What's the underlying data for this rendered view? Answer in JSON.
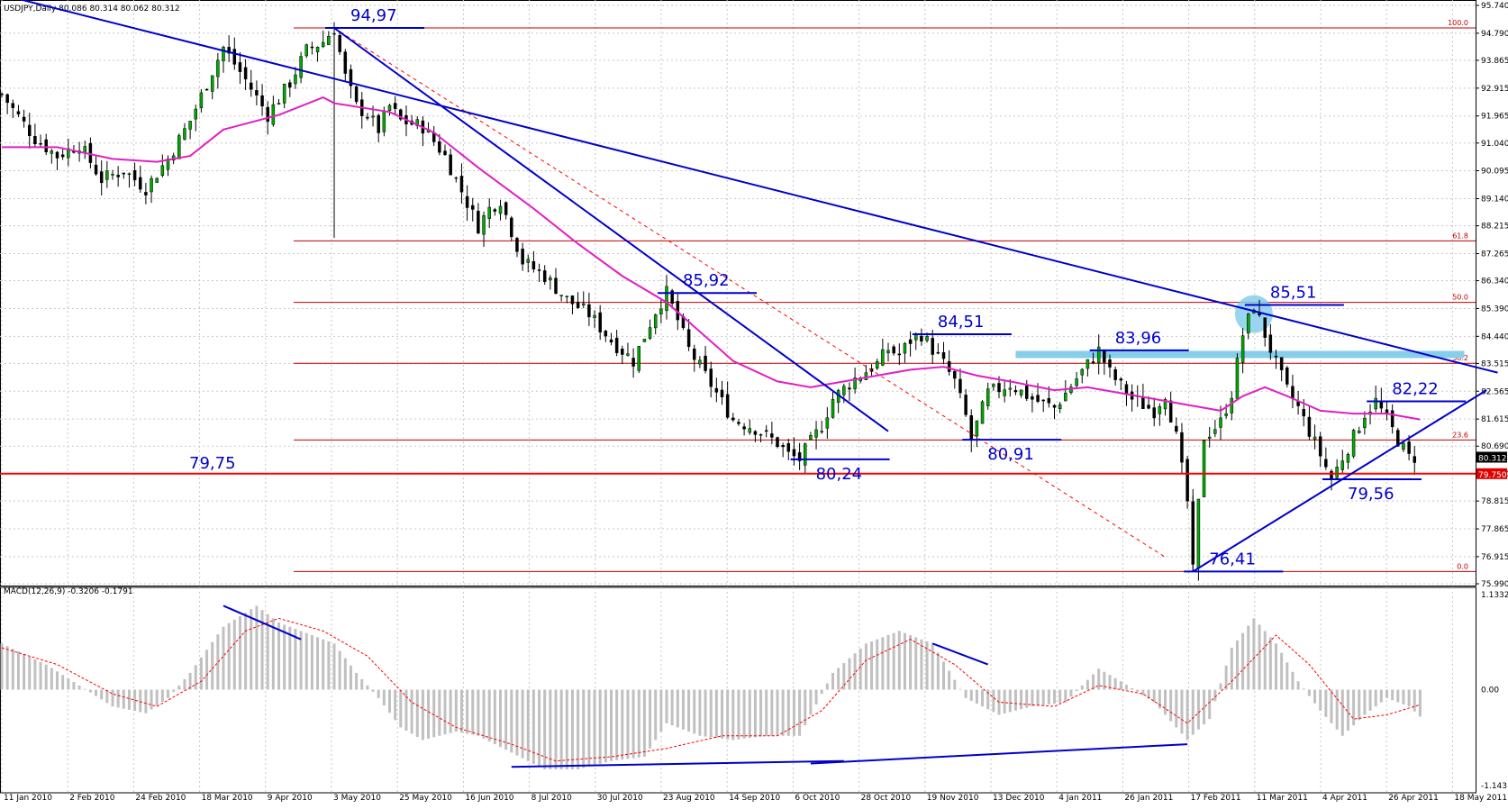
{
  "chart_data": [
    {
      "type": "candlestick",
      "symbol_header": "USDJPY,Daily  80.086 80.314 80.062 80.312",
      "y_axis": {
        "range": [
          75.99,
          95.74
        ],
        "tick_labels": [
          "95.740",
          "94.790",
          "93.865",
          "92.915",
          "91.965",
          "91.040",
          "90.095",
          "89.140",
          "88.215",
          "87.265",
          "86.340",
          "85.390",
          "84.440",
          "83.515",
          "82.565",
          "81.615",
          "80.690",
          "79.740",
          "78.815",
          "77.865",
          "76.915",
          "75.990"
        ]
      },
      "x_axis": {
        "tick_labels": [
          "11 Jan 2010",
          "2 Feb 2010",
          "24 Feb 2010",
          "18 Mar 2010",
          "9 Apr 2010",
          "3 May 2010",
          "25 May 2010",
          "16 Jun 2010",
          "8 Jul 2010",
          "30 Jul 2010",
          "23 Aug 2010",
          "14 Sep 2010",
          "6 Oct 2010",
          "28 Oct 2010",
          "19 Nov 2010",
          "13 Dec 2010",
          "4 Jan 2011",
          "26 Jan 2011",
          "17 Feb 2011",
          "11 Mar 2011",
          "4 Apr 2011",
          "26 Apr 2011",
          "18 May 2011"
        ]
      },
      "price_path": [
        [
          0,
          92.7
        ],
        [
          6,
          91.2
        ],
        [
          10,
          90.6
        ],
        [
          14,
          91.0
        ],
        [
          18,
          89.8
        ],
        [
          22,
          90.1
        ],
        [
          26,
          89.5
        ],
        [
          30,
          90.5
        ],
        [
          34,
          91.8
        ],
        [
          38,
          93.5
        ],
        [
          40,
          94.3
        ],
        [
          44,
          93.2
        ],
        [
          48,
          92.0
        ],
        [
          52,
          93.1
        ],
        [
          55,
          94.2
        ],
        [
          58,
          94.5
        ],
        [
          60,
          94.97
        ],
        [
          62,
          93.3
        ],
        [
          64,
          92.3
        ],
        [
          66,
          92.0
        ],
        [
          68,
          91.5
        ],
        [
          70,
          92.3
        ],
        [
          72,
          91.8
        ],
        [
          76,
          91.6
        ],
        [
          80,
          90.6
        ],
        [
          84,
          89.0
        ],
        [
          86,
          88.2
        ],
        [
          88,
          88.8
        ],
        [
          90,
          89.1
        ],
        [
          94,
          87.0
        ],
        [
          98,
          86.5
        ],
        [
          102,
          85.7
        ],
        [
          106,
          85.2
        ],
        [
          110,
          84.3
        ],
        [
          114,
          83.6
        ],
        [
          118,
          85.3
        ],
        [
          120,
          85.92
        ],
        [
          122,
          85.0
        ],
        [
          124,
          84.0
        ],
        [
          128,
          82.8
        ],
        [
          132,
          81.6
        ],
        [
          136,
          81.3
        ],
        [
          140,
          80.8
        ],
        [
          142,
          80.4
        ],
        [
          144,
          80.24
        ],
        [
          148,
          81.4
        ],
        [
          150,
          82.3
        ],
        [
          154,
          83.0
        ],
        [
          158,
          83.5
        ],
        [
          160,
          84.0
        ],
        [
          162,
          83.8
        ],
        [
          164,
          84.3
        ],
        [
          166,
          84.51
        ],
        [
          168,
          84.0
        ],
        [
          170,
          83.5
        ],
        [
          172,
          82.9
        ],
        [
          174,
          81.7
        ],
        [
          175,
          80.91
        ],
        [
          178,
          82.5
        ],
        [
          182,
          82.8
        ],
        [
          186,
          82.3
        ],
        [
          190,
          82.0
        ],
        [
          194,
          83.0
        ],
        [
          198,
          83.96
        ],
        [
          200,
          83.2
        ],
        [
          204,
          82.3
        ],
        [
          208,
          81.9
        ],
        [
          210,
          82.5
        ],
        [
          212,
          81.0
        ],
        [
          214,
          78.8
        ],
        [
          215,
          76.41
        ],
        [
          217,
          81.0
        ],
        [
          220,
          81.5
        ],
        [
          222,
          82.5
        ],
        [
          224,
          84.5
        ],
        [
          226,
          85.51
        ],
        [
          228,
          84.5
        ],
        [
          230,
          83.5
        ],
        [
          232,
          82.6
        ],
        [
          234,
          82.0
        ],
        [
          236,
          81.2
        ],
        [
          238,
          80.4
        ],
        [
          240,
          79.56
        ],
        [
          242,
          80.3
        ],
        [
          244,
          81.0
        ],
        [
          246,
          81.8
        ],
        [
          248,
          82.22
        ],
        [
          250,
          81.6
        ],
        [
          252,
          80.9
        ],
        [
          254,
          80.3
        ],
        [
          255,
          80.312
        ]
      ],
      "moving_average_path": [
        [
          0,
          90.9
        ],
        [
          10,
          90.9
        ],
        [
          20,
          90.5
        ],
        [
          28,
          90.4
        ],
        [
          34,
          90.6
        ],
        [
          40,
          91.5
        ],
        [
          50,
          92.0
        ],
        [
          58,
          92.6
        ],
        [
          60,
          92.4
        ],
        [
          70,
          92.1
        ],
        [
          78,
          91.4
        ],
        [
          86,
          90.2
        ],
        [
          96,
          88.8
        ],
        [
          104,
          87.6
        ],
        [
          112,
          86.5
        ],
        [
          120,
          85.6
        ],
        [
          126,
          84.6
        ],
        [
          132,
          83.6
        ],
        [
          140,
          82.9
        ],
        [
          146,
          82.7
        ],
        [
          152,
          82.9
        ],
        [
          158,
          83.1
        ],
        [
          164,
          83.3
        ],
        [
          170,
          83.4
        ],
        [
          176,
          83.1
        ],
        [
          182,
          82.9
        ],
        [
          190,
          82.6
        ],
        [
          196,
          82.7
        ],
        [
          202,
          82.5
        ],
        [
          208,
          82.3
        ],
        [
          214,
          82.1
        ],
        [
          220,
          81.9
        ],
        [
          224,
          82.4
        ],
        [
          228,
          82.7
        ],
        [
          232,
          82.4
        ],
        [
          238,
          81.9
        ],
        [
          244,
          81.8
        ],
        [
          250,
          81.8
        ],
        [
          256,
          81.6
        ]
      ],
      "fibonacci_levels": [
        {
          "label": "100.0",
          "value": 94.97
        },
        {
          "label": "61.8",
          "value": 87.7
        },
        {
          "label": "50.0",
          "value": 85.6
        },
        {
          "label": "38.2",
          "value": 83.52
        },
        {
          "label": "23.6",
          "value": 80.9
        },
        {
          "label": "0.0",
          "value": 76.41
        }
      ],
      "support_line": {
        "label": "79,75",
        "value": 79.75,
        "axis_label": "79.750"
      },
      "last_price_label": "80.312",
      "annotations": [
        {
          "text": "94,97",
          "bar": 60,
          "value": 94.97
        },
        {
          "text": "85,92",
          "bar": 120,
          "value": 85.92
        },
        {
          "text": "84,51",
          "bar": 166,
          "value": 84.51
        },
        {
          "text": "80,24",
          "bar": 144,
          "value": 80.24
        },
        {
          "text": "80,91",
          "bar": 175,
          "value": 80.91
        },
        {
          "text": "83,96",
          "bar": 198,
          "value": 83.96
        },
        {
          "text": "85,51",
          "bar": 226,
          "value": 85.51
        },
        {
          "text": "76,41",
          "bar": 215,
          "value": 76.41
        },
        {
          "text": "82,22",
          "bar": 248,
          "value": 82.22
        },
        {
          "text": "79,56",
          "bar": 240,
          "value": 79.56
        }
      ],
      "trendlines": [
        {
          "from": [
            -2,
            96.2
          ],
          "to": [
            270,
            83.2
          ],
          "color": "#0000cc"
        },
        {
          "from": [
            60,
            94.97
          ],
          "to": [
            160,
            81.2
          ],
          "color": "#0000cc"
        },
        {
          "from": [
            215,
            76.41
          ],
          "to": [
            268,
            82.6
          ],
          "color": "#0000cc"
        }
      ],
      "dashed_line": {
        "from": [
          60,
          94.97
        ],
        "to": [
          210,
          76.9
        ],
        "color": "#ff0000"
      },
      "resistance_band": {
        "value": 83.82,
        "from_bar": 183,
        "to_bar": 264,
        "color": "#87ceeb"
      },
      "highlight_circle": {
        "bar": 226,
        "value": 85.2,
        "color": "#87ceeb"
      },
      "colors": {
        "bull": "#00aa00",
        "bear": "#000000",
        "ma": "#e020c0",
        "fib": "#c00000",
        "annotation": "#0000cc",
        "support": "#ff0000"
      }
    },
    {
      "type": "bar",
      "indicator_header": "MACD(12,26,9) -0.3206 -0.1791",
      "y_axis": {
        "tick_labels": [
          "1.1332",
          "0.00",
          "-1.143"
        ],
        "range": [
          -1.143,
          1.1332
        ]
      },
      "histogram_path": [
        [
          0,
          0.55
        ],
        [
          8,
          0.3
        ],
        [
          14,
          0.05
        ],
        [
          20,
          -0.2
        ],
        [
          26,
          -0.28
        ],
        [
          30,
          -0.1
        ],
        [
          34,
          0.2
        ],
        [
          40,
          0.75
        ],
        [
          46,
          1.0
        ],
        [
          50,
          0.8
        ],
        [
          56,
          0.65
        ],
        [
          60,
          0.55
        ],
        [
          64,
          0.2
        ],
        [
          68,
          -0.1
        ],
        [
          72,
          -0.45
        ],
        [
          76,
          -0.6
        ],
        [
          82,
          -0.5
        ],
        [
          86,
          -0.55
        ],
        [
          92,
          -0.75
        ],
        [
          98,
          -0.95
        ],
        [
          104,
          -0.95
        ],
        [
          110,
          -0.85
        ],
        [
          116,
          -0.8
        ],
        [
          120,
          -0.4
        ],
        [
          126,
          -0.55
        ],
        [
          132,
          -0.6
        ],
        [
          138,
          -0.55
        ],
        [
          144,
          -0.55
        ],
        [
          150,
          0.2
        ],
        [
          156,
          0.55
        ],
        [
          162,
          0.7
        ],
        [
          168,
          0.55
        ],
        [
          174,
          -0.1
        ],
        [
          180,
          -0.3
        ],
        [
          186,
          -0.2
        ],
        [
          192,
          -0.15
        ],
        [
          198,
          0.25
        ],
        [
          202,
          0.1
        ],
        [
          208,
          -0.15
        ],
        [
          214,
          -0.6
        ],
        [
          218,
          -0.35
        ],
        [
          222,
          0.5
        ],
        [
          226,
          0.85
        ],
        [
          230,
          0.55
        ],
        [
          234,
          0.1
        ],
        [
          238,
          -0.25
        ],
        [
          242,
          -0.55
        ],
        [
          246,
          -0.3
        ],
        [
          250,
          -0.1
        ],
        [
          254,
          -0.2
        ],
        [
          256,
          -0.3206
        ]
      ],
      "signal_path": [
        [
          0,
          0.5
        ],
        [
          10,
          0.3
        ],
        [
          20,
          -0.05
        ],
        [
          28,
          -0.2
        ],
        [
          36,
          0.1
        ],
        [
          44,
          0.7
        ],
        [
          50,
          0.85
        ],
        [
          58,
          0.7
        ],
        [
          66,
          0.4
        ],
        [
          74,
          -0.15
        ],
        [
          82,
          -0.45
        ],
        [
          92,
          -0.65
        ],
        [
          100,
          -0.85
        ],
        [
          110,
          -0.8
        ],
        [
          120,
          -0.7
        ],
        [
          130,
          -0.55
        ],
        [
          140,
          -0.55
        ],
        [
          148,
          -0.25
        ],
        [
          156,
          0.35
        ],
        [
          164,
          0.6
        ],
        [
          172,
          0.3
        ],
        [
          180,
          -0.15
        ],
        [
          190,
          -0.2
        ],
        [
          198,
          0.05
        ],
        [
          206,
          -0.05
        ],
        [
          214,
          -0.4
        ],
        [
          222,
          0.1
        ],
        [
          230,
          0.65
        ],
        [
          236,
          0.3
        ],
        [
          244,
          -0.35
        ],
        [
          250,
          -0.3
        ],
        [
          256,
          -0.1791
        ]
      ],
      "trendlines": [
        {
          "from": [
            40,
            1.0
          ],
          "to": [
            54,
            0.6
          ]
        },
        {
          "from": [
            168,
            0.55
          ],
          "to": [
            178,
            0.3
          ]
        },
        {
          "from": [
            92,
            -0.92
          ],
          "to": [
            152,
            -0.85
          ]
        },
        {
          "from": [
            146,
            -0.88
          ],
          "to": [
            214,
            -0.65
          ]
        }
      ],
      "colors": {
        "histogram": "#c0c0c0",
        "signal": "#ff0000",
        "trend": "#0000cc"
      }
    }
  ]
}
